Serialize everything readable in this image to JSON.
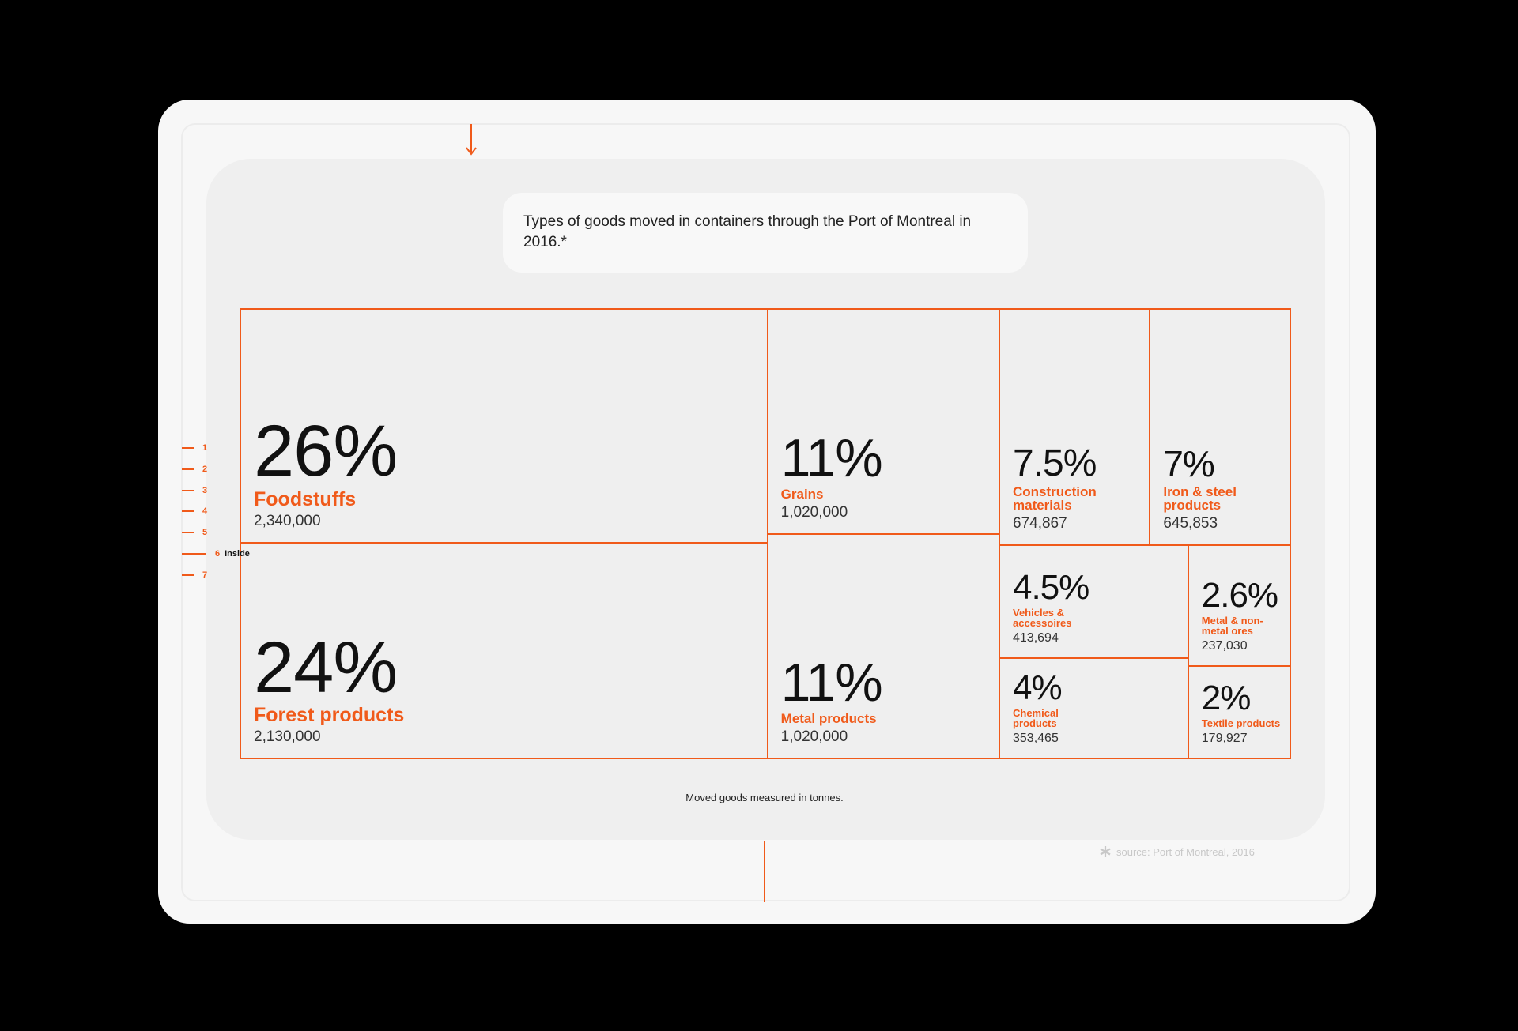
{
  "chart_data": {
    "type": "treemap",
    "title": "Types of goods moved in containers through the Port of Montreal in 2016.*",
    "note": "Moved goods measured in tonnes.",
    "color": "#f05a1a",
    "categories": [
      "Foodstuffs",
      "Forest products",
      "Grains",
      "Metal products",
      "Construction materials",
      "Iron & steel products",
      "Vehicles & accessoires",
      "Metal & non-metal ores",
      "Chemical products",
      "Textile products"
    ],
    "values": [
      26,
      24,
      11,
      11,
      7.5,
      7,
      4.5,
      2.6,
      4,
      2
    ],
    "value_labels": [
      "26%",
      "24%",
      "11%",
      "11%",
      "7.5%",
      "7%",
      "4.5%",
      "2.6%",
      "4%",
      "2%"
    ],
    "tonnes": [
      {
        "value": 2340000,
        "label": "2,340,000"
      },
      {
        "value": 2130000,
        "label": "2,130,000"
      },
      {
        "value": 1020000,
        "label": "1,020,000"
      },
      {
        "value": 1020000,
        "label": "1,020,000"
      },
      {
        "value": 674867,
        "label": "674,867"
      },
      {
        "value": 645853,
        "label": "645,853"
      },
      {
        "value": 413694,
        "label": "413,694"
      },
      {
        "value": 237030,
        "label": "237,030"
      },
      {
        "value": 353465,
        "label": "353,465"
      },
      {
        "value": 179927,
        "label": "179,927"
      }
    ]
  },
  "mockup": {
    "source": "source: Port of Montreal, 2016",
    "guides": [
      "1",
      "2",
      "3",
      "4",
      "5",
      "6",
      "7"
    ],
    "guide_note": "Inside"
  }
}
